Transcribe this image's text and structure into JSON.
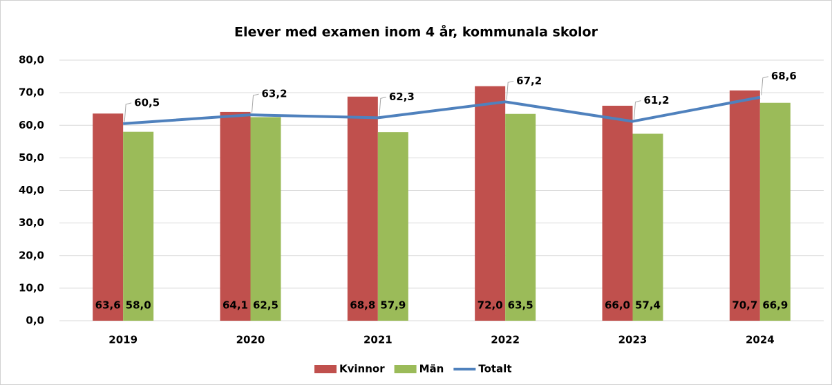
{
  "chart_data": {
    "type": "bar",
    "title": "Elever med examen inom 4 år, kommunala skolor",
    "categories": [
      "2019",
      "2020",
      "2021",
      "2022",
      "2023",
      "2024"
    ],
    "series": [
      {
        "name": "Kvinnor",
        "type": "bar",
        "color": "#c0504d",
        "values": [
          63.6,
          64.1,
          68.8,
          72.0,
          66.0,
          70.7
        ],
        "value_labels": [
          "63,6",
          "64,1",
          "68,8",
          "72,0",
          "66,0",
          "70,7"
        ]
      },
      {
        "name": "Män",
        "type": "bar",
        "color": "#9bbb59",
        "values": [
          58.0,
          62.5,
          57.9,
          63.5,
          57.4,
          66.9
        ],
        "value_labels": [
          "58,0",
          "62,5",
          "57,9",
          "63,5",
          "57,4",
          "66,9"
        ]
      },
      {
        "name": "Totalt",
        "type": "line",
        "color": "#4f81bd",
        "values": [
          60.5,
          63.2,
          62.3,
          67.2,
          61.2,
          68.6
        ],
        "value_labels": [
          "60,5",
          "63,2",
          "62,3",
          "67,2",
          "61,2",
          "68,6"
        ]
      }
    ],
    "ylim": [
      0,
      80
    ],
    "yticks": [
      {
        "value": 0,
        "label": "0,0"
      },
      {
        "value": 10,
        "label": "10,0"
      },
      {
        "value": 20,
        "label": "20,0"
      },
      {
        "value": 30,
        "label": "30,0"
      },
      {
        "value": 40,
        "label": "40,0"
      },
      {
        "value": 50,
        "label": "50,0"
      },
      {
        "value": 60,
        "label": "60,0"
      },
      {
        "value": 70,
        "label": "70,0"
      },
      {
        "value": 80,
        "label": "80,0"
      }
    ],
    "grid": true,
    "legend": "bottom"
  }
}
